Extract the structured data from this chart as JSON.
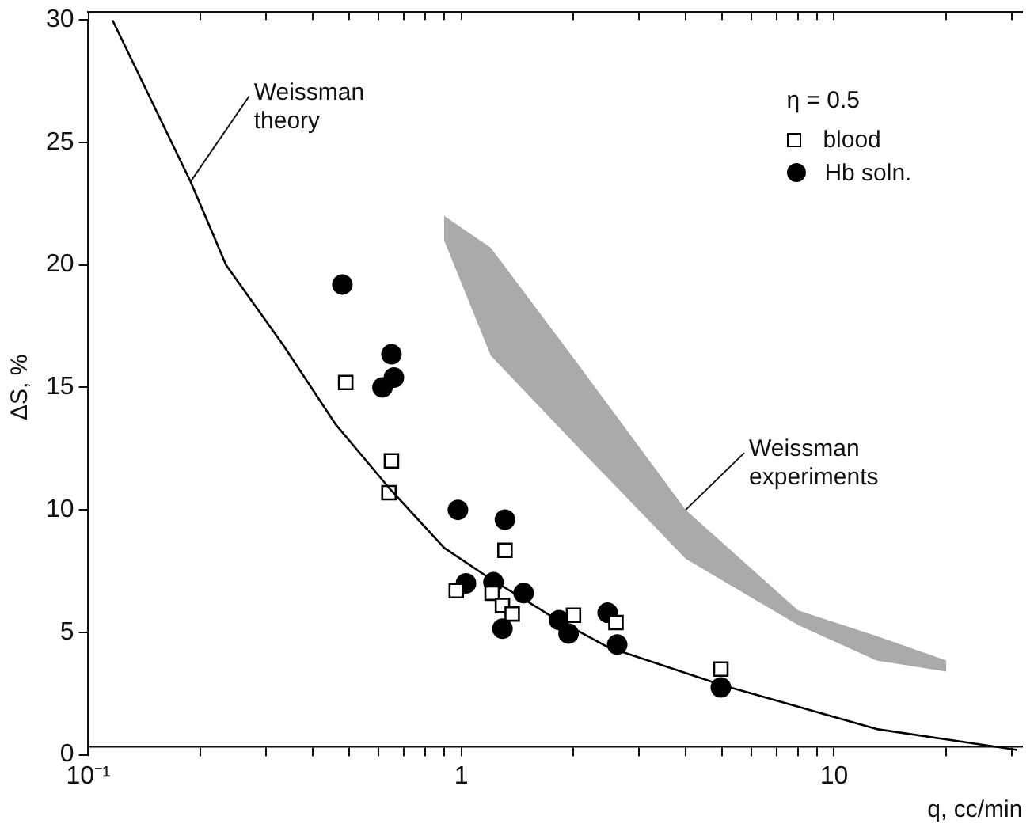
{
  "chart_data": {
    "type": "scatter",
    "xlabel": "q, cc/min",
    "ylabel": "ΔS, %",
    "legend_title": "η = 0.5",
    "legend": "top right",
    "log": "x",
    "xlim": [
      0.1,
      32
    ],
    "ylim": [
      0,
      30
    ],
    "xticks": [
      {
        "value": 0.1,
        "label": "10⁻¹"
      },
      {
        "value": 0.2,
        "label": null
      },
      {
        "value": 0.3,
        "label": null
      },
      {
        "value": 0.4,
        "label": null
      },
      {
        "value": 0.5,
        "label": null
      },
      {
        "value": 0.6,
        "label": null
      },
      {
        "value": 0.7,
        "label": null
      },
      {
        "value": 0.8,
        "label": null
      },
      {
        "value": 0.9,
        "label": null
      },
      1,
      {
        "value": 2,
        "label": null
      },
      {
        "value": 3,
        "label": null
      },
      {
        "value": 4,
        "label": null
      },
      {
        "value": 5,
        "label": null
      },
      {
        "value": 6,
        "label": null
      },
      {
        "value": 7,
        "label": null
      },
      {
        "value": 8,
        "label": null
      },
      {
        "value": 9,
        "label": null
      },
      10,
      {
        "value": 20,
        "label": null
      },
      {
        "value": 30,
        "label": null
      }
    ],
    "yticks": [
      0,
      5,
      10,
      15,
      20,
      25,
      30
    ],
    "annotations": [
      {
        "text": "Weissman\ntheory",
        "x": 0.188,
        "y": 23.4
      },
      {
        "text": "Weissman\nexperiments",
        "x": 4,
        "y": 10
      }
    ],
    "series": [
      {
        "type": "area",
        "color": "#aaaaaa",
        "x": [
          0.9,
          1.2,
          2,
          4,
          8,
          13,
          20
        ],
        "values": [
          null,
          null,
          null,
          null,
          null,
          null,
          null
        ],
        "upper": [
          22,
          20.7,
          16.2,
          10,
          5.9,
          4.85,
          3.85
        ],
        "lower": [
          21,
          16.3,
          12.75,
          8,
          5.3,
          3.85,
          3.4
        ]
      },
      {
        "type": "line",
        "color": "#000000",
        "marker": "none",
        "line_style": "solid",
        "x": [
          0.116,
          0.188,
          0.234,
          0.334,
          0.46,
          0.64,
          0.9,
          1.18,
          1.77,
          2.47,
          5,
          13,
          31
        ],
        "values": [
          30,
          23.4,
          20,
          16.7,
          13.5,
          10.9,
          8.45,
          7.25,
          5.6,
          4.4,
          2.85,
          1.05,
          0.2
        ]
      },
      {
        "name": "blood",
        "color": "#000000",
        "marker": "square",
        "x": [
          0.49,
          0.65,
          0.64,
          0.97,
          1.21,
          1.29,
          1.37,
          1.31,
          2.0,
          2.6,
          4.97
        ],
        "values": [
          15.2,
          12.0,
          10.7,
          6.7,
          6.6,
          6.1,
          5.75,
          8.35,
          5.7,
          5.4,
          3.5
        ]
      },
      {
        "name": "Hb soln.",
        "color": "#000000",
        "marker": "circle",
        "x": [
          0.48,
          0.65,
          0.66,
          0.615,
          0.98,
          1.31,
          1.03,
          1.22,
          1.47,
          1.29,
          1.83,
          1.94,
          2.47,
          2.62,
          4.97
        ],
        "values": [
          19.2,
          16.35,
          15.4,
          15.0,
          10.0,
          9.6,
          7.0,
          7.05,
          6.6,
          5.15,
          5.5,
          4.95,
          5.8,
          4.5,
          2.75
        ]
      }
    ]
  }
}
